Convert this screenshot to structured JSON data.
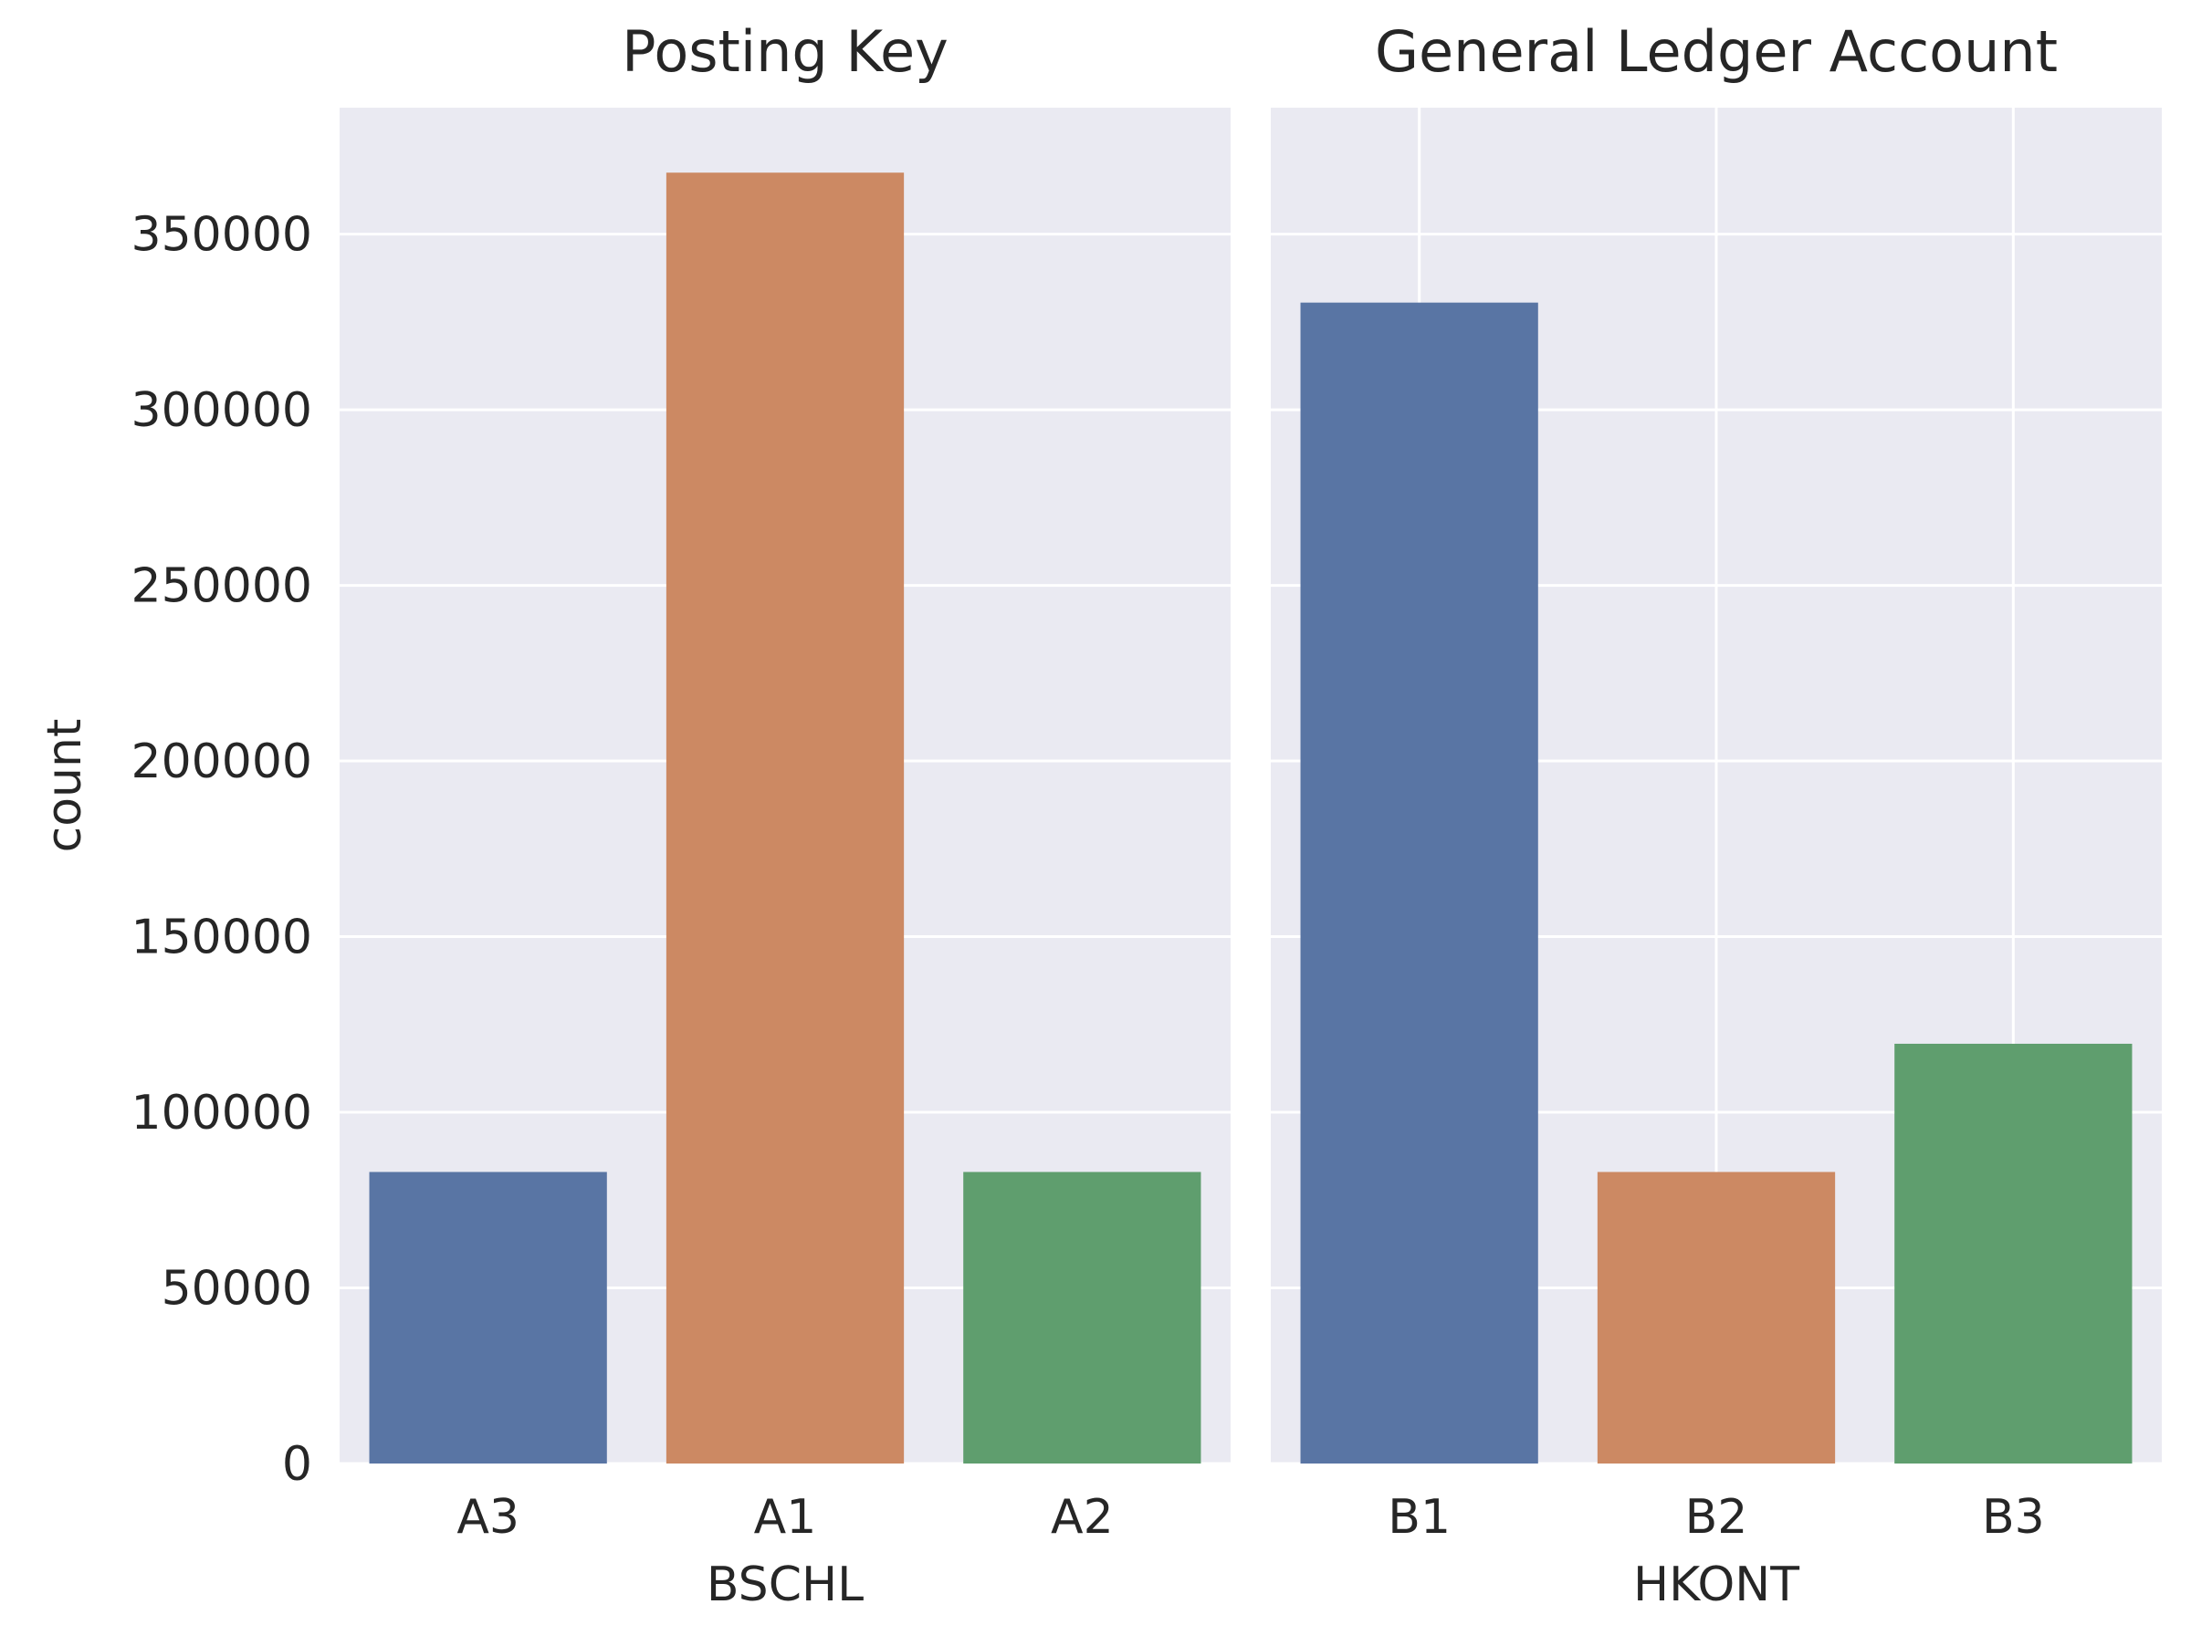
{
  "chart_data": [
    {
      "type": "bar",
      "title": "Posting Key",
      "xlabel": "BSCHL",
      "ylabel": "count",
      "categories": [
        "A3",
        "A1",
        "A2"
      ],
      "values": [
        83000,
        367500,
        83000
      ],
      "colors": [
        "#5975A4",
        "#CC8963",
        "#5F9E6E"
      ],
      "ylim": [
        0,
        386000
      ],
      "yticks": [
        0,
        50000,
        100000,
        150000,
        200000,
        250000,
        300000,
        350000
      ],
      "grid": true,
      "x_grid": false
    },
    {
      "type": "bar",
      "title": "General Ledger Account",
      "xlabel": "HKONT",
      "ylabel": "",
      "categories": [
        "B1",
        "B2",
        "B3"
      ],
      "values": [
        330500,
        83000,
        119500
      ],
      "colors": [
        "#5975A4",
        "#CC8963",
        "#5F9E6E"
      ],
      "ylim": [
        0,
        386000
      ],
      "yticks": [
        0,
        50000,
        100000,
        150000,
        200000,
        250000,
        300000,
        350000
      ],
      "grid": true,
      "x_grid": true,
      "shared_y": true
    }
  ]
}
